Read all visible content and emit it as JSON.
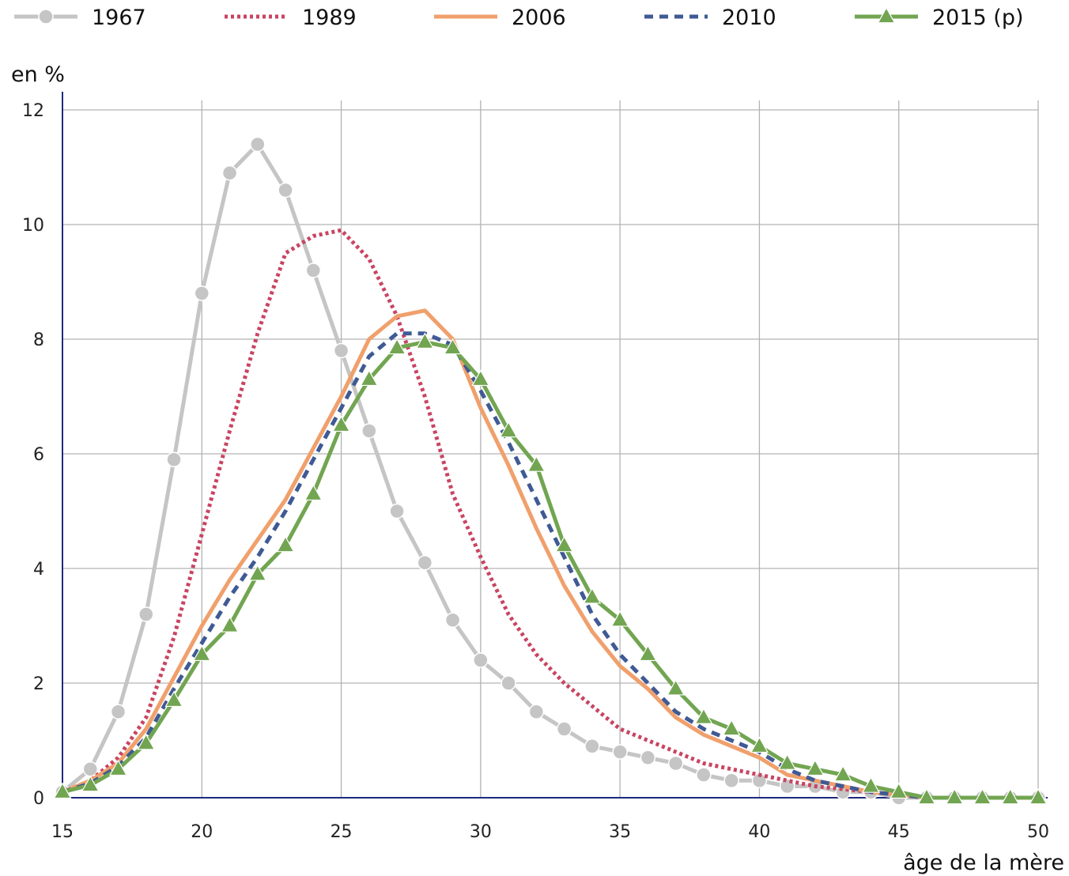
{
  "chart_data": {
    "type": "line",
    "title": "",
    "ylabel": "en %",
    "xlabel": "âge de la mère",
    "xlim": [
      15,
      50
    ],
    "ylim": [
      0,
      12
    ],
    "x_ticks": [
      15,
      20,
      25,
      30,
      35,
      40,
      45,
      50
    ],
    "y_ticks": [
      0,
      2,
      4,
      6,
      8,
      10,
      12
    ],
    "grid": true,
    "legend_position": "top",
    "x": [
      15,
      16,
      17,
      18,
      19,
      20,
      21,
      22,
      23,
      24,
      25,
      26,
      27,
      28,
      29,
      30,
      31,
      32,
      33,
      34,
      35,
      36,
      37,
      38,
      39,
      40,
      41,
      42,
      43,
      44,
      45,
      46,
      47,
      48,
      49,
      50
    ],
    "series": [
      {
        "name": "1967",
        "color": "#c5c5c5",
        "style": "solid-circle",
        "values": [
          0.1,
          0.5,
          1.5,
          3.2,
          5.9,
          8.8,
          10.9,
          11.4,
          10.6,
          9.2,
          7.8,
          6.4,
          5.0,
          4.1,
          3.1,
          2.4,
          2.0,
          1.5,
          1.2,
          0.9,
          0.8,
          0.7,
          0.6,
          0.4,
          0.3,
          0.3,
          0.2,
          0.2,
          0.1,
          0.1,
          0.0,
          0.0,
          0.0,
          0.0,
          0.0,
          0.0
        ]
      },
      {
        "name": "1989",
        "color": "#c94462",
        "style": "dotted",
        "values": [
          0.1,
          0.3,
          0.7,
          1.4,
          2.8,
          4.6,
          6.4,
          8.1,
          9.5,
          9.8,
          9.9,
          9.4,
          8.4,
          7.0,
          5.3,
          4.2,
          3.2,
          2.5,
          2.0,
          1.6,
          1.2,
          1.0,
          0.8,
          0.6,
          0.5,
          0.4,
          0.3,
          0.2,
          0.15,
          0.1,
          0.05,
          0.0,
          0.0,
          0.0,
          0.0,
          0.0
        ]
      },
      {
        "name": "2006",
        "color": "#f0a06c",
        "style": "solid",
        "values": [
          0.1,
          0.3,
          0.6,
          1.2,
          2.1,
          3.0,
          3.8,
          4.5,
          5.2,
          6.1,
          7.0,
          8.0,
          8.4,
          8.5,
          8.0,
          6.8,
          5.8,
          4.7,
          3.7,
          2.9,
          2.3,
          1.9,
          1.4,
          1.1,
          0.9,
          0.7,
          0.4,
          0.3,
          0.2,
          0.1,
          0.05,
          0.0,
          0.0,
          0.0,
          0.0,
          0.0
        ]
      },
      {
        "name": "2010",
        "color": "#3f5a94",
        "style": "dashed",
        "values": [
          0.1,
          0.25,
          0.55,
          1.05,
          1.9,
          2.7,
          3.5,
          4.2,
          5.0,
          5.9,
          6.8,
          7.7,
          8.1,
          8.1,
          7.9,
          7.1,
          6.2,
          5.2,
          4.2,
          3.2,
          2.5,
          2.0,
          1.5,
          1.2,
          1.0,
          0.8,
          0.5,
          0.3,
          0.2,
          0.1,
          0.05,
          0.0,
          0.0,
          0.0,
          0.0,
          0.0
        ]
      },
      {
        "name": "2015 (p)",
        "color": "#72a551",
        "style": "solid-triangle",
        "values": [
          0.1,
          0.22,
          0.5,
          0.95,
          1.7,
          2.5,
          3.0,
          3.9,
          4.4,
          5.3,
          6.5,
          7.3,
          7.85,
          7.95,
          7.85,
          7.3,
          6.4,
          5.8,
          4.4,
          3.5,
          3.1,
          2.5,
          1.9,
          1.4,
          1.2,
          0.9,
          0.6,
          0.5,
          0.4,
          0.2,
          0.1,
          0.0,
          0.0,
          0.0,
          0.0,
          0.0
        ]
      }
    ]
  }
}
